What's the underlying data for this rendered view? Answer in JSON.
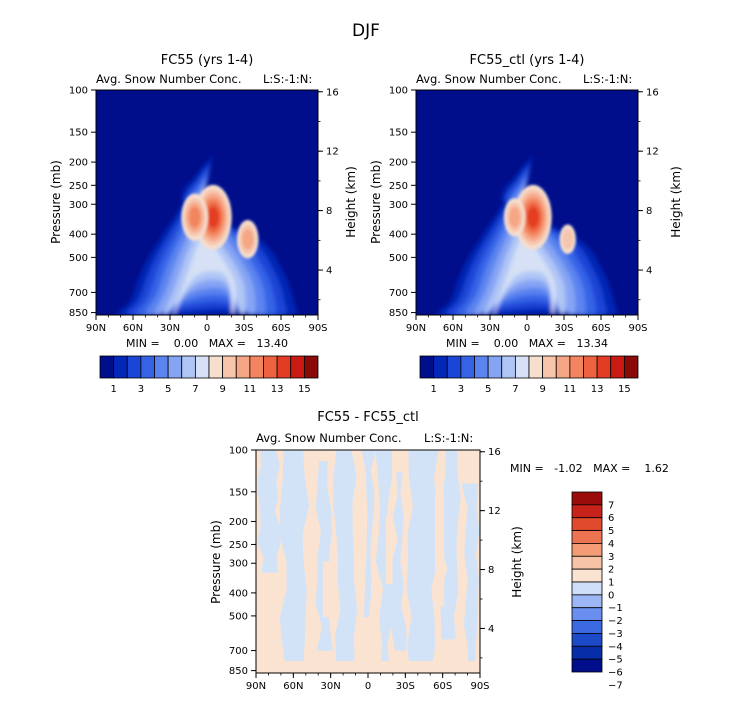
{
  "page_title": "DJF",
  "colors": {
    "bins_a": [
      "#000e8c",
      "#0327b6",
      "#1b45d6",
      "#3563e6",
      "#5c84f0",
      "#86a4f4",
      "#b0c6f5",
      "#d6e1f6",
      "#f6dfcf",
      "#f7c5ac",
      "#f5a685",
      "#f2855f",
      "#ee633f",
      "#e33c24",
      "#c91b12",
      "#8a0a0a"
    ],
    "bins_d": [
      "#000e8c",
      "#082da8",
      "#1c4ac8",
      "#3a69e0",
      "#6a8ff0",
      "#9db7f6",
      "#cfdef8",
      "#fbe3d2",
      "#f7c3a6",
      "#f39c76",
      "#ec7450",
      "#e04a2c",
      "#c8231a",
      "#9a0c0c"
    ]
  },
  "chart_data": [
    {
      "type": "heatmap",
      "title": "FC55 (yrs 1-4)",
      "subtitle": "Avg. Snow Number Conc.",
      "corner_label": "L:S:-1:N:",
      "ylabel": "Pressure (mb)",
      "y2label": "Height (km)",
      "x_ticks": [
        "90N",
        "60N",
        "30N",
        "0",
        "30S",
        "60S",
        "90S"
      ],
      "y_ticks": [
        "100",
        "150",
        "200",
        "250",
        "300",
        "400",
        "500",
        "700",
        "850"
      ],
      "y2_ticks": [
        "16",
        "12",
        "8",
        "4"
      ],
      "y_scale": "log",
      "stats_text": "MIN =    0.00   MAX =   13.40",
      "min": 0.0,
      "max": 13.4,
      "colorbar_labels": [
        "1",
        "3",
        "5",
        "7",
        "9",
        "11",
        "13",
        "15"
      ],
      "features": [
        {
          "lat": -5,
          "pressure": 340,
          "value": 13.4
        },
        {
          "lat": 10,
          "pressure": 340,
          "value": 10.5
        },
        {
          "lat": -33,
          "pressure": 420,
          "value": 9.5
        }
      ]
    },
    {
      "type": "heatmap",
      "title": "FC55_ctl (yrs 1-4)",
      "subtitle": "Avg. Snow Number Conc.",
      "corner_label": "L:S:-1:N:",
      "ylabel": "Pressure (mb)",
      "y2label": "Height (km)",
      "x_ticks": [
        "90N",
        "60N",
        "30N",
        "0",
        "30S",
        "60S",
        "90S"
      ],
      "y_ticks": [
        "100",
        "150",
        "200",
        "250",
        "300",
        "400",
        "500",
        "700",
        "850"
      ],
      "y2_ticks": [
        "16",
        "12",
        "8",
        "4"
      ],
      "y_scale": "log",
      "stats_text": "MIN =    0.00   MAX =   13.34",
      "min": 0.0,
      "max": 13.34,
      "colorbar_labels": [
        "1",
        "3",
        "5",
        "7",
        "9",
        "11",
        "13",
        "15"
      ],
      "features": [
        {
          "lat": -5,
          "pressure": 340,
          "value": 13.34
        },
        {
          "lat": 10,
          "pressure": 340,
          "value": 10.4
        },
        {
          "lat": -33,
          "pressure": 420,
          "value": 9.3
        }
      ]
    },
    {
      "type": "heatmap",
      "title": "FC55 - FC55_ctl",
      "subtitle": "Avg. Snow Number Conc.",
      "corner_label": "L:S:-1:N:",
      "ylabel": "Pressure (mb)",
      "y2label": "Height (km)",
      "x_ticks": [
        "90N",
        "60N",
        "30N",
        "0",
        "30S",
        "60S",
        "90S"
      ],
      "y_ticks": [
        "100",
        "150",
        "200",
        "250",
        "300",
        "400",
        "500",
        "700",
        "850"
      ],
      "y2_ticks": [
        "16",
        "12",
        "8",
        "4"
      ],
      "y_scale": "log",
      "stats_text": "MIN =   -1.02   MAX =    1.62",
      "min": -1.02,
      "max": 1.62,
      "colorbar_labels": [
        "7",
        "6",
        "5",
        "4",
        "3",
        "2",
        "1",
        "0",
        "-1",
        "-2",
        "-3",
        "-4",
        "-5",
        "-6",
        "-7"
      ]
    }
  ]
}
